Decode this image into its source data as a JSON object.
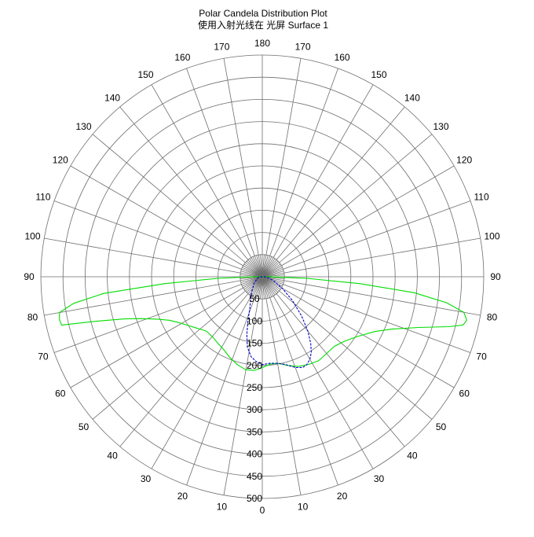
{
  "chart_data": {
    "type": "line",
    "title": "Polar Candela Distribution Plot",
    "subtitle": "使用入射光线在 光屏 Surface 1",
    "angle_labels": [
      {
        "angle": 0,
        "label": "0"
      },
      {
        "angle": 10,
        "label": "10"
      },
      {
        "angle": -10,
        "label": "10"
      },
      {
        "angle": 20,
        "label": "20"
      },
      {
        "angle": -20,
        "label": "20"
      },
      {
        "angle": 30,
        "label": "30"
      },
      {
        "angle": -30,
        "label": "30"
      },
      {
        "angle": 40,
        "label": "40"
      },
      {
        "angle": -40,
        "label": "40"
      },
      {
        "angle": 50,
        "label": "50"
      },
      {
        "angle": -50,
        "label": "50"
      },
      {
        "angle": 60,
        "label": "60"
      },
      {
        "angle": -60,
        "label": "60"
      },
      {
        "angle": 70,
        "label": "70"
      },
      {
        "angle": -70,
        "label": "70"
      },
      {
        "angle": 80,
        "label": "80"
      },
      {
        "angle": -80,
        "label": "80"
      },
      {
        "angle": 90,
        "label": "90"
      },
      {
        "angle": -90,
        "label": "90"
      },
      {
        "angle": 100,
        "label": "100"
      },
      {
        "angle": -100,
        "label": "100"
      },
      {
        "angle": 110,
        "label": "110"
      },
      {
        "angle": -110,
        "label": "110"
      },
      {
        "angle": 120,
        "label": "120"
      },
      {
        "angle": -120,
        "label": "120"
      },
      {
        "angle": 130,
        "label": "130"
      },
      {
        "angle": -130,
        "label": "130"
      },
      {
        "angle": 140,
        "label": "140"
      },
      {
        "angle": -140,
        "label": "140"
      },
      {
        "angle": 150,
        "label": "150"
      },
      {
        "angle": -150,
        "label": "150"
      },
      {
        "angle": 160,
        "label": "160"
      },
      {
        "angle": -160,
        "label": "160"
      },
      {
        "angle": 170,
        "label": "170"
      },
      {
        "angle": -170,
        "label": "170"
      },
      {
        "angle": 180,
        "label": "180"
      }
    ],
    "radial_ticks": [
      {
        "value": 50,
        "label": "50"
      },
      {
        "value": 100,
        "label": "100"
      },
      {
        "value": 150,
        "label": "150"
      },
      {
        "value": 200,
        "label": "200"
      },
      {
        "value": 250,
        "label": "250"
      },
      {
        "value": 300,
        "label": "300"
      },
      {
        "value": 350,
        "label": "350"
      },
      {
        "value": 400,
        "label": "400"
      },
      {
        "value": 450,
        "label": "450"
      },
      {
        "value": 500,
        "label": "500"
      }
    ],
    "rlim": [
      0,
      500
    ],
    "angle_step_minor": 5,
    "grid": true,
    "series": [
      {
        "color": "#00dd00",
        "dash": "solid",
        "points": [
          {
            "angle": -89.5,
            "r": 20
          },
          {
            "angle": -88,
            "r": 100
          },
          {
            "angle": -86,
            "r": 220
          },
          {
            "angle": -84,
            "r": 360
          },
          {
            "angle": -82,
            "r": 430
          },
          {
            "angle": -80,
            "r": 465
          },
          {
            "angle": -78,
            "r": 468
          },
          {
            "angle": -76.5,
            "r": 466
          },
          {
            "angle": -75,
            "r": 388
          },
          {
            "angle": -73,
            "r": 325
          },
          {
            "angle": -71,
            "r": 290
          },
          {
            "angle": -68,
            "r": 255
          },
          {
            "angle": -65,
            "r": 232
          },
          {
            "angle": -62,
            "r": 218
          },
          {
            "angle": -58,
            "r": 204
          },
          {
            "angle": -52,
            "r": 188
          },
          {
            "angle": -46,
            "r": 176
          },
          {
            "angle": -40,
            "r": 176
          },
          {
            "angle": -34,
            "r": 180
          },
          {
            "angle": -28,
            "r": 186
          },
          {
            "angle": -22,
            "r": 196
          },
          {
            "angle": -16,
            "r": 206
          },
          {
            "angle": -10,
            "r": 213
          },
          {
            "angle": -5,
            "r": 212
          },
          {
            "angle": 0,
            "r": 205
          },
          {
            "angle": 5,
            "r": 198
          },
          {
            "angle": 10,
            "r": 198
          },
          {
            "angle": 16,
            "r": 208
          },
          {
            "angle": 22,
            "r": 218
          },
          {
            "angle": 28,
            "r": 224
          },
          {
            "angle": 34,
            "r": 228
          },
          {
            "angle": 40,
            "r": 226
          },
          {
            "angle": 46,
            "r": 226
          },
          {
            "angle": 52,
            "r": 236
          },
          {
            "angle": 58,
            "r": 254
          },
          {
            "angle": 64,
            "r": 282
          },
          {
            "angle": 68,
            "r": 315
          },
          {
            "angle": 72,
            "r": 370
          },
          {
            "angle": 75,
            "r": 435
          },
          {
            "angle": 76.5,
            "r": 466
          },
          {
            "angle": 78,
            "r": 472
          },
          {
            "angle": 80,
            "r": 462
          },
          {
            "angle": 82,
            "r": 420
          },
          {
            "angle": 84,
            "r": 345
          },
          {
            "angle": 86,
            "r": 220
          },
          {
            "angle": 88,
            "r": 100
          },
          {
            "angle": 89.5,
            "r": 20
          }
        ]
      },
      {
        "color": "#0000cc",
        "dash": "dashed",
        "points": [
          {
            "angle": -88,
            "r": 8
          },
          {
            "angle": -70,
            "r": 12
          },
          {
            "angle": -50,
            "r": 25
          },
          {
            "angle": -40,
            "r": 33
          },
          {
            "angle": -35,
            "r": 42
          },
          {
            "angle": -28,
            "r": 55
          },
          {
            "angle": -22,
            "r": 75
          },
          {
            "angle": -18,
            "r": 105
          },
          {
            "angle": -15,
            "r": 135
          },
          {
            "angle": -12,
            "r": 162
          },
          {
            "angle": -8,
            "r": 182
          },
          {
            "angle": -4,
            "r": 192
          },
          {
            "angle": 0,
            "r": 198
          },
          {
            "angle": 5,
            "r": 196
          },
          {
            "angle": 10,
            "r": 198
          },
          {
            "angle": 15,
            "r": 205
          },
          {
            "angle": 20,
            "r": 218
          },
          {
            "angle": 24,
            "r": 224
          },
          {
            "angle": 27,
            "r": 222
          },
          {
            "angle": 30,
            "r": 215
          },
          {
            "angle": 33,
            "r": 203
          },
          {
            "angle": 36,
            "r": 186
          },
          {
            "angle": 40,
            "r": 160
          },
          {
            "angle": 45,
            "r": 126
          },
          {
            "angle": 52,
            "r": 86
          },
          {
            "angle": 60,
            "r": 52
          },
          {
            "angle": 70,
            "r": 28
          },
          {
            "angle": 80,
            "r": 14
          },
          {
            "angle": 88,
            "r": 8
          }
        ]
      }
    ]
  }
}
